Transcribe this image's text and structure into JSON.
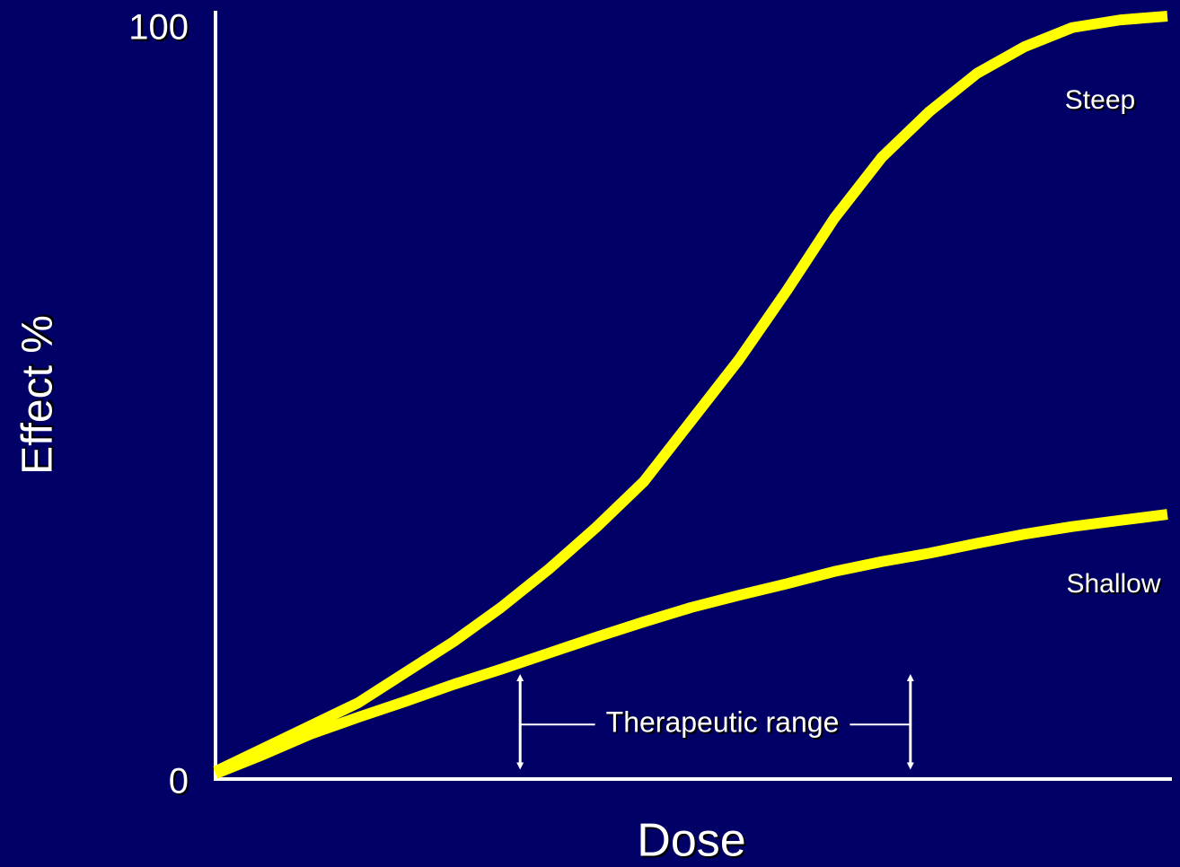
{
  "chart_data": {
    "type": "line",
    "xlabel": "Dose",
    "ylabel": "Effect %",
    "xlim": [
      0,
      100
    ],
    "ylim": [
      0,
      100
    ],
    "yticks": [
      0,
      100
    ],
    "grid": false,
    "x": [
      0,
      5,
      10,
      15,
      20,
      25,
      30,
      35,
      40,
      45,
      50,
      55,
      60,
      65,
      70,
      75,
      80,
      85,
      90,
      95,
      100
    ],
    "series": [
      {
        "name": "Steep",
        "color": "#ffff00",
        "values": [
          1,
          4,
          7,
          10,
          14,
          18,
          22.5,
          27.5,
          33,
          39,
          47,
          55,
          64,
          73.5,
          81.5,
          87.5,
          92.5,
          96,
          98.5,
          99.5,
          100
        ]
      },
      {
        "name": "Shallow",
        "color": "#ffff00",
        "values": [
          0.7,
          3.2,
          5.9,
          8.1,
          10.2,
          12.4,
          14.4,
          16.5,
          18.6,
          20.6,
          22.5,
          24.1,
          25.6,
          27.2,
          28.5,
          29.6,
          30.9,
          32.1,
          33.1,
          33.9,
          34.7
        ]
      }
    ],
    "annotations": [
      {
        "text": "Therapeutic range",
        "x": [
          32,
          73
        ],
        "y": [
          1,
          14
        ]
      }
    ]
  }
}
